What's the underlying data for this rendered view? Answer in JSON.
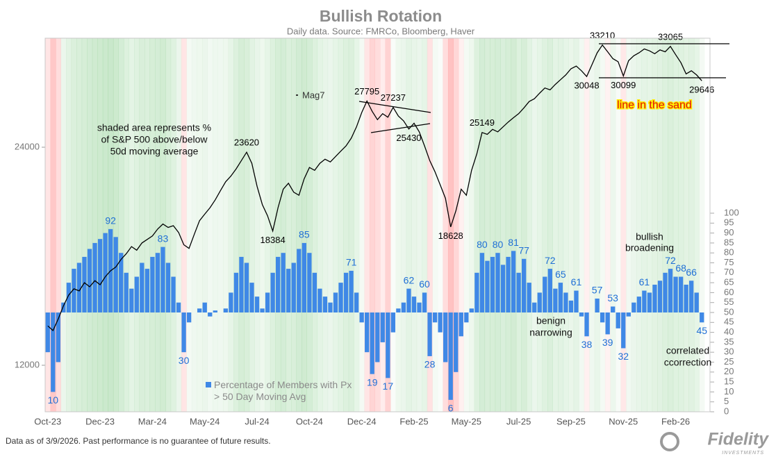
{
  "chart_data": {
    "type": "combo",
    "title": "Bullish Rotation",
    "subtitle": "Daily data.  Source: FMRCo, Bloomberg, Haver",
    "categories": [
      "Oct-23",
      null,
      null,
      null,
      null,
      null,
      null,
      null,
      null,
      null,
      "Dec-23",
      null,
      null,
      null,
      null,
      null,
      null,
      null,
      null,
      null,
      "Mar-24",
      null,
      null,
      null,
      null,
      null,
      null,
      null,
      null,
      null,
      "May-24",
      null,
      null,
      null,
      null,
      null,
      null,
      null,
      null,
      null,
      "Jul-24",
      null,
      null,
      null,
      null,
      null,
      null,
      null,
      null,
      null,
      "Oct-24",
      null,
      null,
      null,
      null,
      null,
      null,
      null,
      null,
      null,
      "Dec-24",
      null,
      null,
      null,
      null,
      null,
      null,
      null,
      null,
      null,
      "Feb-25",
      null,
      null,
      null,
      null,
      null,
      null,
      null,
      null,
      null,
      "May-25",
      null,
      null,
      null,
      null,
      null,
      null,
      null,
      null,
      null,
      "Jul-25",
      null,
      null,
      null,
      null,
      null,
      null,
      null,
      null,
      null,
      "Sep-25",
      null,
      null,
      null,
      null,
      null,
      null,
      null,
      null,
      null,
      "Nov-25",
      null,
      null,
      null,
      null,
      null,
      null,
      null,
      null,
      null,
      "Feb-26",
      null,
      null,
      null,
      null,
      null
    ],
    "ylim": [
      10350,
      33940
    ],
    "yticks": [
      12000,
      24000
    ],
    "ylog": true,
    "y2lim": [
      0,
      100
    ],
    "y2ticks": [
      0,
      5,
      10,
      15,
      20,
      25,
      30,
      35,
      40,
      45,
      50,
      55,
      60,
      65,
      70,
      75,
      80,
      85,
      90,
      95,
      100
    ],
    "bar_base": 50,
    "series": [
      {
        "name": "Percentage of Members with Px > 50 Day Moving Avg",
        "type": "bar",
        "axis": "y2",
        "color": "#3f88e6",
        "label_color": "#1f6fd6",
        "values": [
          30,
          10,
          25,
          55,
          65,
          72,
          75,
          78,
          82,
          85,
          87,
          90,
          92,
          88,
          80,
          70,
          62,
          68,
          75,
          72,
          78,
          80,
          83,
          75,
          68,
          55,
          30,
          45,
          50,
          52,
          55,
          48,
          51,
          50,
          52,
          60,
          70,
          78,
          75,
          65,
          58,
          52,
          60,
          70,
          78,
          80,
          72,
          75,
          82,
          85,
          80,
          70,
          62,
          58,
          55,
          60,
          65,
          70,
          71,
          60,
          45,
          30,
          19,
          25,
          35,
          17,
          40,
          52,
          55,
          62,
          58,
          55,
          60,
          28,
          45,
          40,
          25,
          6,
          20,
          38,
          45,
          52,
          70,
          80,
          76,
          78,
          80,
          74,
          78,
          81,
          70,
          77,
          65,
          55,
          60,
          68,
          72,
          62,
          65,
          60,
          56,
          61,
          48,
          38,
          50,
          57,
          45,
          39,
          53,
          42,
          32,
          48,
          55,
          58,
          61,
          60,
          64,
          66,
          70,
          72,
          68,
          68,
          64,
          66,
          60,
          45
        ],
        "value_labels": [
          null,
          "10",
          null,
          null,
          null,
          null,
          null,
          null,
          null,
          null,
          null,
          null,
          "92",
          null,
          null,
          null,
          null,
          null,
          null,
          null,
          null,
          null,
          "83",
          null,
          null,
          null,
          "30",
          null,
          null,
          null,
          null,
          null,
          null,
          null,
          null,
          null,
          null,
          null,
          null,
          null,
          null,
          null,
          null,
          null,
          null,
          null,
          null,
          null,
          null,
          "85",
          null,
          null,
          null,
          null,
          null,
          null,
          null,
          null,
          "71",
          null,
          null,
          null,
          "19",
          null,
          null,
          "17",
          null,
          null,
          null,
          "62",
          null,
          null,
          "60",
          "28",
          null,
          null,
          null,
          "6",
          null,
          null,
          null,
          null,
          null,
          "80",
          null,
          null,
          "80",
          null,
          null,
          "81",
          null,
          "77",
          null,
          null,
          null,
          null,
          "72",
          null,
          "65",
          null,
          null,
          "61",
          null,
          "38",
          null,
          "57",
          null,
          "39",
          "53",
          null,
          "32",
          null,
          null,
          null,
          "61",
          null,
          null,
          null,
          null,
          "72",
          null,
          "68",
          null,
          "66",
          null,
          "45"
        ]
      },
      {
        "type": "line",
        "axis": "y",
        "color": "#000000",
        "label_color": "#000000",
        "values": [
          13600,
          13400,
          13900,
          14500,
          15000,
          15300,
          15200,
          15600,
          15400,
          15700,
          15500,
          15900,
          16200,
          16400,
          16800,
          17100,
          17500,
          17300,
          17700,
          17900,
          18100,
          18500,
          18800,
          18600,
          18700,
          18300,
          17600,
          17400,
          18200,
          19000,
          19400,
          19800,
          20300,
          20900,
          21500,
          21900,
          22400,
          23000,
          23620,
          22800,
          21200,
          20000,
          19300,
          18384,
          19800,
          21000,
          21400,
          20800,
          20600,
          21700,
          22500,
          22300,
          22800,
          23100,
          22900,
          23300,
          23700,
          24100,
          24700,
          25600,
          26800,
          27795,
          26900,
          26200,
          26700,
          26400,
          27237,
          26500,
          26100,
          25430,
          25900,
          25200,
          24100,
          23000,
          22200,
          21300,
          20400,
          18628,
          19600,
          21000,
          20600,
          22300,
          23500,
          25149,
          25000,
          25400,
          25200,
          25600,
          26000,
          26360,
          26700,
          27200,
          27750,
          28000,
          28500,
          28970,
          28800,
          29300,
          29750,
          30200,
          30800,
          31060,
          30600,
          30048,
          31200,
          32400,
          33210,
          32500,
          31800,
          31500,
          30099,
          31600,
          32100,
          32400,
          32800,
          32600,
          32300,
          32700,
          32500,
          33065,
          32200,
          31400,
          30300,
          30600,
          30200,
          29646
        ],
        "value_labels": [
          null,
          null,
          null,
          null,
          null,
          null,
          null,
          null,
          null,
          null,
          null,
          null,
          null,
          null,
          null,
          null,
          null,
          null,
          null,
          null,
          null,
          null,
          null,
          null,
          null,
          null,
          null,
          null,
          null,
          null,
          null,
          null,
          null,
          null,
          null,
          null,
          null,
          null,
          "23620",
          null,
          null,
          null,
          null,
          "18384",
          null,
          null,
          null,
          null,
          null,
          null,
          null,
          null,
          null,
          null,
          null,
          null,
          null,
          null,
          null,
          null,
          null,
          "27795",
          null,
          null,
          null,
          null,
          "27237",
          null,
          null,
          "25430",
          null,
          null,
          null,
          null,
          null,
          null,
          null,
          "18628",
          null,
          null,
          null,
          null,
          null,
          "25149",
          null,
          null,
          null,
          null,
          null,
          null,
          null,
          null,
          null,
          null,
          null,
          null,
          null,
          null,
          null,
          null,
          null,
          null,
          null,
          "30048",
          null,
          null,
          "33210",
          null,
          null,
          null,
          "30099",
          null,
          null,
          null,
          null,
          null,
          null,
          null,
          null,
          "33065",
          null,
          null,
          null,
          null,
          null,
          "29646"
        ]
      }
    ],
    "annotations": [
      [
        "Mag7"
      ],
      [
        "shaded area represents %",
        "of S&P 500 above/below",
        "50d moving average"
      ],
      [
        "line in the sand"
      ],
      [
        "bullish",
        "broadening"
      ],
      [
        "benign",
        "narrowing"
      ],
      [
        "correlated",
        "ccorrection"
      ]
    ]
  },
  "footer": "Data as of 3/9/2026. Past performance is no guarantee of future results.",
  "logo": "Fidelity",
  "logo_sub": "INVESTMENTS"
}
